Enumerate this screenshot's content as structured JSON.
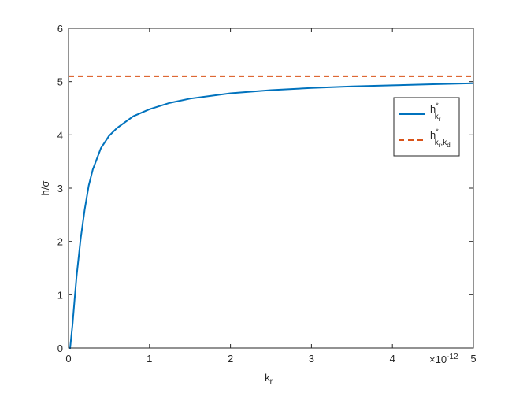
{
  "chart_data": {
    "type": "line",
    "ylabel": "h/σ",
    "xlabel": "k",
    "xlabel_sub": "r",
    "x_multiplier": {
      "base": "×10",
      "exponent": "-12"
    },
    "xlim": [
      0,
      5
    ],
    "xticks": [
      0,
      1,
      2,
      3,
      4,
      5
    ],
    "ylim": [
      0,
      6
    ],
    "yticks": [
      0,
      1,
      2,
      3,
      4,
      5,
      6
    ],
    "legend": "upper right",
    "series": [
      {
        "name": "h",
        "name_parts": [
          {
            "text": "*",
            "pos": "sup"
          },
          {
            "text": "k",
            "pos": "sub"
          },
          {
            "text": "r",
            "pos": "subsub"
          }
        ],
        "color": "#0072bd",
        "dash": false,
        "x": [
          0,
          0.02,
          0.05,
          0.08,
          0.1,
          0.15,
          0.2,
          0.25,
          0.3,
          0.4,
          0.5,
          0.6,
          0.8,
          1,
          1.25,
          1.5,
          2,
          2.5,
          3,
          3.5,
          4,
          4.5,
          5
        ],
        "values": [
          0,
          0,
          0.45,
          1,
          1.35,
          2.05,
          2.6,
          3.05,
          3.35,
          3.75,
          3.98,
          4.13,
          4.35,
          4.48,
          4.6,
          4.68,
          4.78,
          4.84,
          4.88,
          4.91,
          4.93,
          4.95,
          4.97
        ]
      },
      {
        "name": "h",
        "name_parts": [
          {
            "text": "*",
            "pos": "sup"
          },
          {
            "text": "k",
            "pos": "sub"
          },
          {
            "text": "r",
            "pos": "subsub"
          },
          {
            "text": ",k",
            "pos": "sub"
          },
          {
            "text": "d",
            "pos": "subsub"
          }
        ],
        "color": "#d95319",
        "dash": true,
        "x": [
          0,
          5
        ],
        "values": [
          5.1,
          5.1
        ]
      }
    ]
  }
}
